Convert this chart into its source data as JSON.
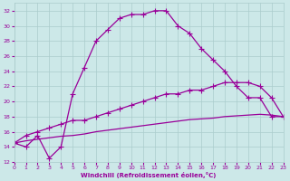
{
  "xlabel": "Windchill (Refroidissement éolien,°C)",
  "xlim": [
    0,
    23
  ],
  "ylim": [
    12,
    33
  ],
  "xticks": [
    0,
    1,
    2,
    3,
    4,
    5,
    6,
    7,
    8,
    9,
    10,
    11,
    12,
    13,
    14,
    15,
    16,
    17,
    18,
    19,
    20,
    21,
    22,
    23
  ],
  "yticks": [
    12,
    14,
    16,
    18,
    20,
    22,
    24,
    26,
    28,
    30,
    32
  ],
  "bg_color": "#cce8e8",
  "grid_color": "#aacccc",
  "line_color": "#990099",
  "curve1_x": [
    0,
    1,
    2,
    3,
    4,
    5,
    6,
    7,
    8,
    9,
    10,
    11,
    12,
    13,
    14,
    15,
    16,
    17,
    18,
    19,
    20,
    21,
    22,
    23
  ],
  "curve1_y": [
    14.5,
    14.0,
    15.5,
    12.5,
    14.0,
    21.0,
    24.5,
    28.0,
    29.5,
    31.0,
    31.5,
    31.5,
    32.0,
    32.0,
    30.0,
    29.0,
    27.0,
    25.5,
    24.0,
    22.0,
    20.5,
    20.5,
    18.0,
    18.0
  ],
  "curve1_markers": [
    0,
    1,
    2,
    3,
    4,
    5,
    6,
    7,
    8,
    9,
    10,
    11,
    12,
    13,
    14,
    15,
    16,
    17,
    18,
    19,
    20,
    21,
    22,
    23
  ],
  "curve2_x": [
    0,
    1,
    2,
    3,
    4,
    5,
    6,
    7,
    8,
    9,
    10,
    11,
    12,
    13,
    14,
    15,
    16,
    17,
    18,
    19,
    20,
    21,
    22,
    23
  ],
  "curve2_y": [
    14.5,
    15.5,
    16.0,
    16.5,
    17.0,
    17.5,
    17.5,
    18.0,
    18.5,
    19.0,
    19.5,
    20.0,
    20.5,
    21.0,
    21.0,
    21.5,
    21.5,
    22.0,
    22.5,
    22.5,
    22.5,
    22.0,
    20.5,
    18.0
  ],
  "curve2_markers": [
    0,
    1,
    2,
    3,
    4,
    5,
    6,
    7,
    8,
    9,
    10,
    11,
    12,
    13,
    14,
    15,
    16,
    17,
    18,
    19,
    20,
    21,
    22,
    23
  ],
  "curve3_x": [
    0,
    1,
    2,
    3,
    4,
    5,
    6,
    7,
    8,
    9,
    10,
    11,
    12,
    13,
    14,
    15,
    16,
    17,
    18,
    19,
    20,
    21,
    22,
    23
  ],
  "curve3_y": [
    14.5,
    14.8,
    15.0,
    15.2,
    15.4,
    15.5,
    15.7,
    16.0,
    16.2,
    16.4,
    16.6,
    16.8,
    17.0,
    17.2,
    17.4,
    17.6,
    17.7,
    17.8,
    18.0,
    18.1,
    18.2,
    18.3,
    18.2,
    18.0
  ],
  "marker": "+",
  "markersize": 4,
  "linewidth": 0.9
}
